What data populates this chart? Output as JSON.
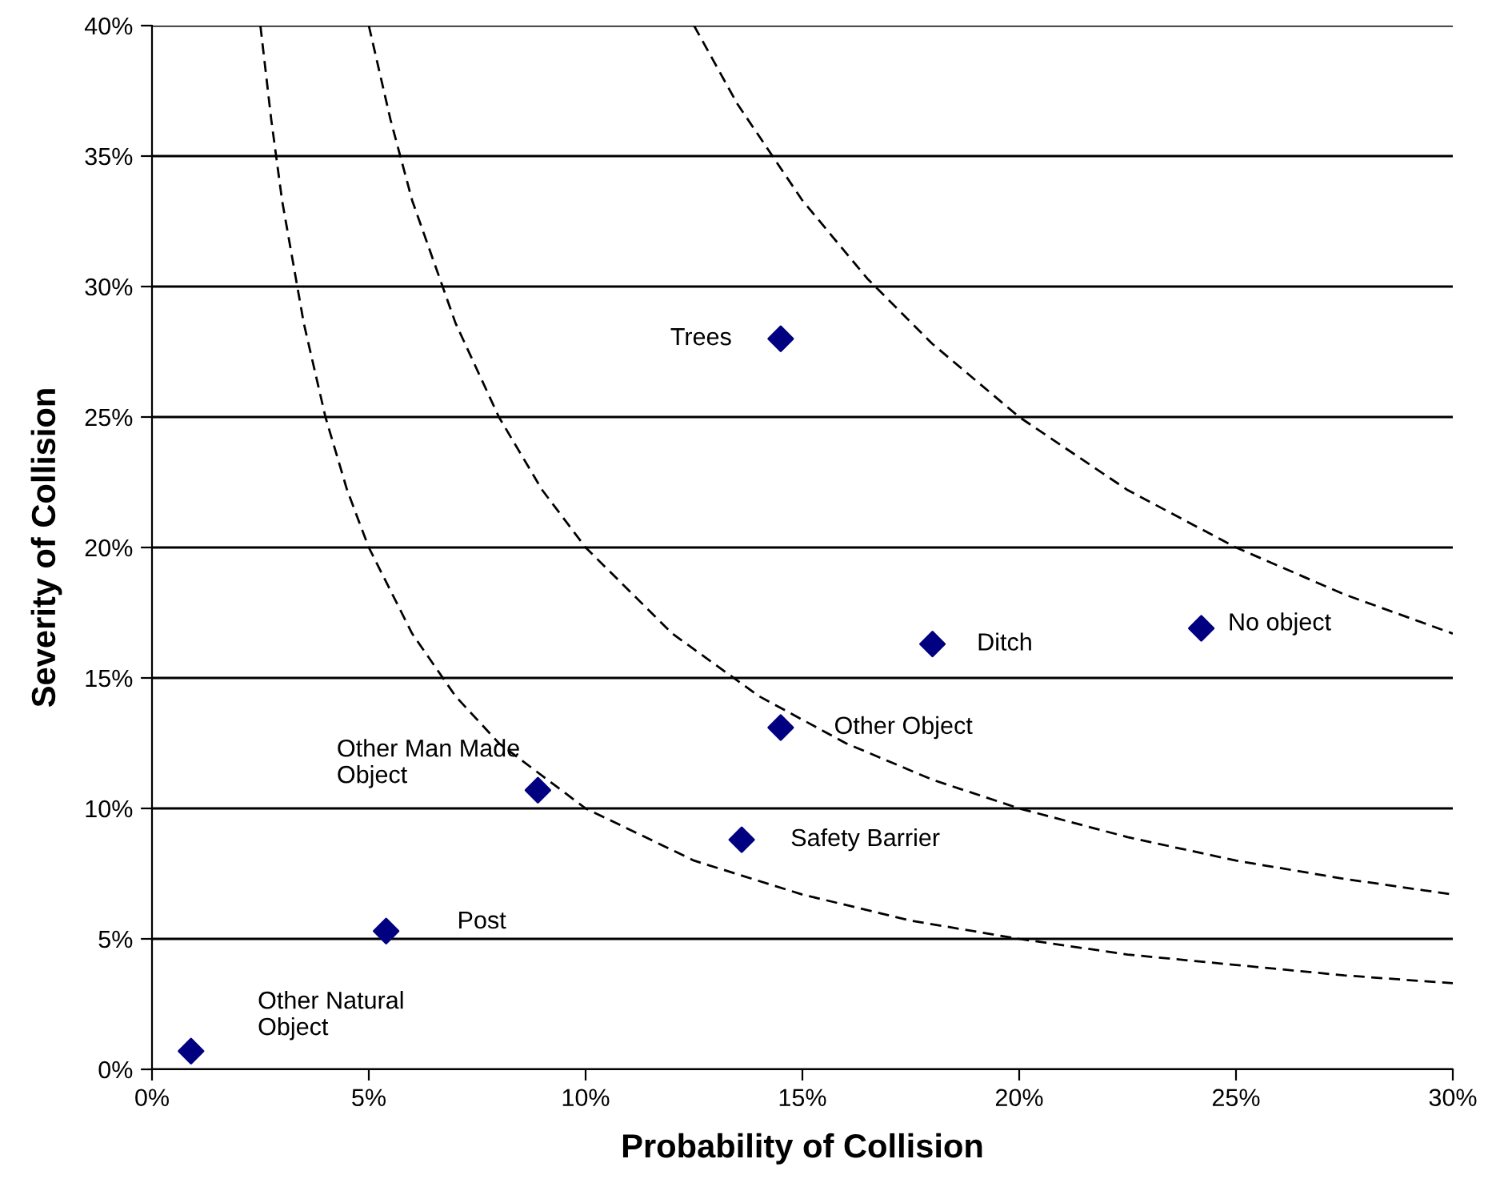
{
  "chart_data": {
    "type": "scatter",
    "xlabel": "Probability of Collision",
    "ylabel": "Severity of Collision",
    "xlim": [
      0,
      30
    ],
    "ylim": [
      0,
      40
    ],
    "xticks": [
      {
        "value": 0,
        "label": "0%"
      },
      {
        "value": 5,
        "label": "5%"
      },
      {
        "value": 10,
        "label": "10%"
      },
      {
        "value": 15,
        "label": "15%"
      },
      {
        "value": 20,
        "label": "20%"
      },
      {
        "value": 25,
        "label": "25%"
      },
      {
        "value": 30,
        "label": "30%"
      }
    ],
    "yticks": [
      {
        "value": 0,
        "label": "0%"
      },
      {
        "value": 5,
        "label": "5%"
      },
      {
        "value": 10,
        "label": "10%"
      },
      {
        "value": 15,
        "label": "15%"
      },
      {
        "value": 20,
        "label": "20%"
      },
      {
        "value": 25,
        "label": "25%"
      },
      {
        "value": 30,
        "label": "30%"
      },
      {
        "value": 35,
        "label": "35%"
      },
      {
        "value": 40,
        "label": "40%"
      }
    ],
    "grid": "y",
    "legend": false,
    "series": [
      {
        "color": "#000080",
        "marker": "diamond",
        "x": [
          14.5,
          18.0,
          24.2,
          14.5,
          13.6,
          8.9,
          5.4,
          0.9
        ],
        "values": [
          28.0,
          16.3,
          16.9,
          13.1,
          8.8,
          10.7,
          5.3,
          0.7
        ]
      },
      {
        "type": "line",
        "color": "#000000",
        "line_style": "dashed",
        "marker": "none",
        "x": [
          2.5,
          2.75,
          3,
          3.5,
          4,
          4.5,
          5,
          6,
          7,
          8,
          10,
          12.5,
          15,
          17.5,
          20,
          22.5,
          25,
          27.5,
          30
        ],
        "values": [
          40,
          36.4,
          33.3,
          28.6,
          25,
          22.2,
          20,
          16.7,
          14.3,
          12.5,
          10,
          8,
          6.7,
          5.7,
          5,
          4.4,
          4,
          3.6,
          3.3
        ]
      },
      {
        "type": "line",
        "color": "#000000",
        "line_style": "dashed",
        "marker": "none",
        "x": [
          5,
          5.5,
          6,
          7,
          8,
          9,
          10,
          12,
          14,
          16,
          18,
          20,
          22.5,
          25,
          27.5,
          30
        ],
        "values": [
          40,
          36.4,
          33.3,
          28.6,
          25,
          22.2,
          20,
          16.7,
          14.3,
          12.5,
          11.1,
          10,
          8.9,
          8,
          7.3,
          6.7
        ]
      },
      {
        "type": "line",
        "color": "#000000",
        "line_style": "dashed",
        "marker": "none",
        "x": [
          12.5,
          13.5,
          15,
          16.5,
          18,
          20,
          22.5,
          25,
          27.5,
          30
        ],
        "values": [
          40,
          37,
          33.3,
          30.3,
          27.8,
          25,
          22.2,
          20,
          18.2,
          16.7
        ]
      }
    ],
    "annotations": [
      {
        "text": "Trees",
        "x": 14.5,
        "y": 28.0
      },
      {
        "text": "Ditch",
        "x": 18.0,
        "y": 16.3
      },
      {
        "text": "No object",
        "x": 24.2,
        "y": 16.9
      },
      {
        "text": "Other Object",
        "x": 14.5,
        "y": 13.1
      },
      {
        "text": "Safety Barrier",
        "x": 13.6,
        "y": 8.8
      },
      {
        "text": "Other Man Made\nObject",
        "x": 8.9,
        "y": 10.7
      },
      {
        "text": "Post",
        "x": 5.4,
        "y": 5.3
      },
      {
        "text": "Other Natural\nObject",
        "x": 0.9,
        "y": 0.7
      }
    ]
  }
}
